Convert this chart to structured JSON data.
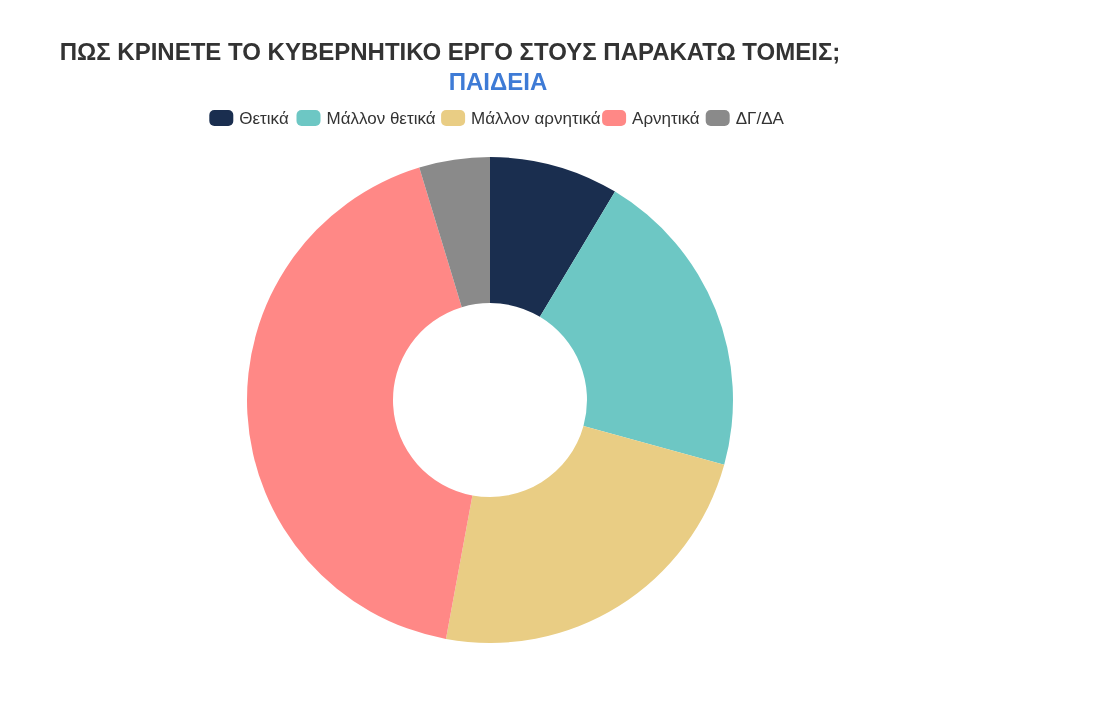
{
  "chart_data": {
    "type": "donut",
    "title": "ΠΩΣ ΚΡΙΝΕΤΕ ΤΟ ΚΥΒΕΡΝΗΤΙΚΟ ΕΡΓΟ ΣΤΟΥΣ ΠΑΡΑΚΑΤΩ ΤΟΜΕΙΣ;",
    "subtitle": "ΠΑΙΔΕΙΑ",
    "categories": [
      "Θετικά",
      "Μάλλον θετικά",
      "Μάλλον αρνητικά",
      "Αρνητικά",
      "ΔΓ/ΔΑ"
    ],
    "values": [
      8.6,
      20.7,
      23.6,
      42.4,
      4.7
    ],
    "colors": [
      "#1a2e4f",
      "#6dc7c4",
      "#e9cd84",
      "#ff8886",
      "#8a8a8a"
    ],
    "legend": "top"
  }
}
